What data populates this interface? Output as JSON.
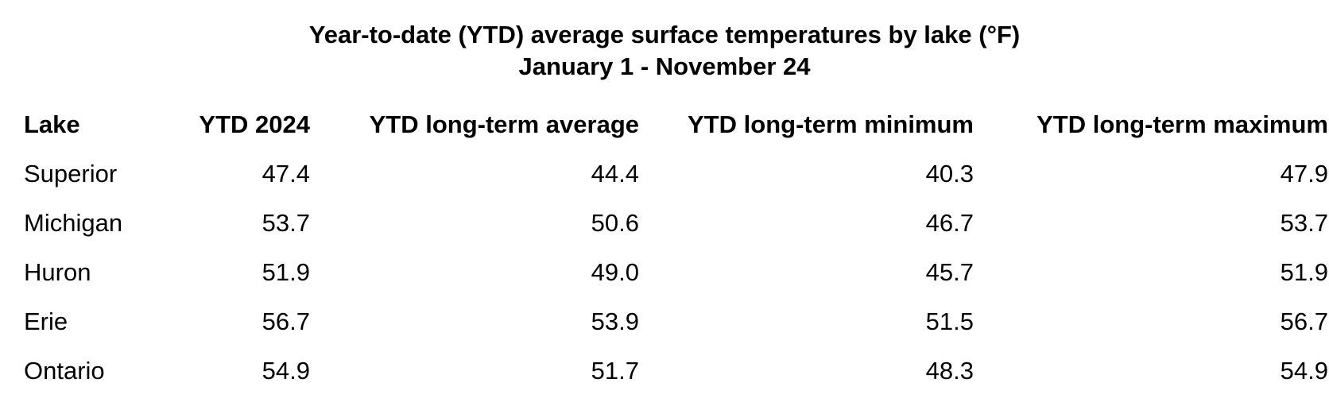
{
  "chart_data": {
    "type": "table",
    "title": "Year-to-date (YTD) average surface temperatures by lake (°F)",
    "subtitle": "January 1 - November 24",
    "columns": [
      "Lake",
      "YTD 2024",
      "YTD long-term average",
      "YTD long-term minimum",
      "YTD long-term maximum"
    ],
    "rows": [
      [
        "Superior",
        "47.4",
        "44.4",
        "40.3",
        "47.9"
      ],
      [
        "Michigan",
        "53.7",
        "50.6",
        "46.7",
        "53.7"
      ],
      [
        "Huron",
        "51.9",
        "49.0",
        "45.7",
        "51.9"
      ],
      [
        "Erie",
        "56.7",
        "53.9",
        "51.5",
        "56.7"
      ],
      [
        "Ontario",
        "54.9",
        "51.7",
        "48.3",
        "54.9"
      ]
    ]
  }
}
